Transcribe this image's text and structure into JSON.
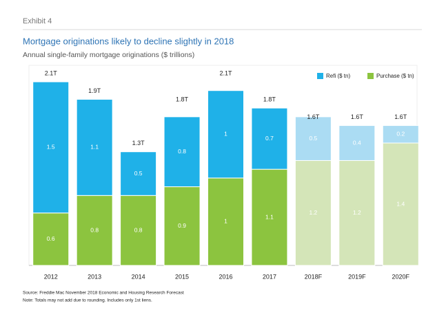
{
  "header": {
    "exhibit": "Exhibit 4"
  },
  "chart_data": {
    "type": "stacked_bar",
    "title": "Mortgage originations likely to decline slightly in 2018",
    "subtitle": "Annual single-family mortgage originations ($ trillions)",
    "categories": [
      "2012",
      "2013",
      "2014",
      "2015",
      "2016",
      "2017",
      "2018F",
      "2019F",
      "2020F"
    ],
    "forecast": [
      false,
      false,
      false,
      false,
      false,
      false,
      true,
      true,
      true
    ],
    "series": [
      {
        "name": "Purchase ($ tn)",
        "color": "#8cc43f",
        "forecast_color": "#d4e5b8",
        "values": [
          0.6,
          0.8,
          0.8,
          0.9,
          1.0,
          1.1,
          1.2,
          1.2,
          1.4
        ]
      },
      {
        "name": "Refi ($ tn)",
        "color": "#1fb1e8",
        "forecast_color": "#abdcf3",
        "values": [
          1.5,
          1.1,
          0.5,
          0.8,
          1.0,
          0.7,
          0.5,
          0.4,
          0.2
        ]
      }
    ],
    "totals": {
      "values": [
        2.1,
        1.9,
        1.3,
        1.8,
        2.1,
        1.8,
        1.6,
        1.6,
        1.6
      ],
      "value_labels": [
        "2.1T",
        "1.9T",
        "1.3T",
        "1.8T",
        "2.1T",
        "1.8T",
        "1.6T",
        "1.6T",
        "1.6T"
      ]
    },
    "ylim": [
      0,
      2.1
    ],
    "legend": "top-right"
  },
  "footer": {
    "source": "Source: Freddie Mac November 2018 Economic and Housing Research Forecast",
    "note": "Note: Totals may not add due to rounding. Includes only 1st liens."
  }
}
